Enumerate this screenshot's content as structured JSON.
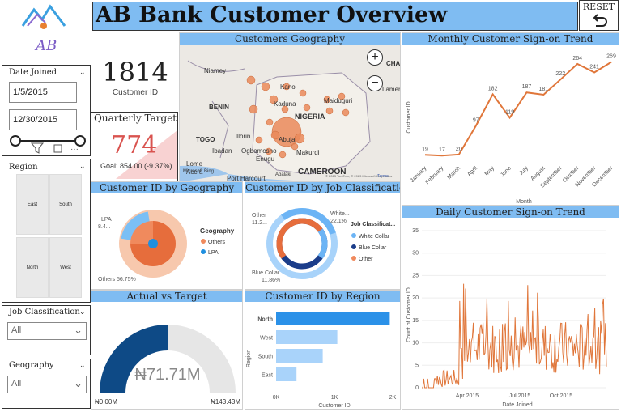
{
  "header": {
    "title": "AB Bank Customer Overview",
    "reset_label": "RESET",
    "logo_text": "AB"
  },
  "kpi": {
    "value": "1814",
    "label": "Customer ID"
  },
  "target": {
    "title": "Quarterly Target",
    "value": "774",
    "goal": "Goal: 854.00 (-9.37%)",
    "progress": 0.906
  },
  "date_slicer": {
    "title": "Date Joined",
    "start": "1/5/2015",
    "end": "12/30/2015"
  },
  "region_slicer": {
    "title": "Region",
    "tiles": [
      "East",
      "South",
      "North",
      "West"
    ]
  },
  "job_slicer": {
    "title": "Job Classification",
    "value": "All"
  },
  "geo_slicer": {
    "title": "Geography",
    "value": "All"
  },
  "map": {
    "title": "Customers Geography",
    "labels": [
      "Niamey",
      "BENIN",
      "TOGO",
      "Kano",
      "Kaduna",
      "NIGERIA",
      "Maiduguri",
      "Abuja",
      "Ilorin",
      "Ibadan",
      "Ogbomosho",
      "Enugu",
      "Makurdi",
      "Lome",
      "Accra",
      "Port Harcourt",
      "Abalaki",
      "CAMEROON",
      "CHA",
      "Lamene"
    ],
    "zoom_in": "+",
    "zoom_out": "−",
    "credit": "Microsoft Bing",
    "terms": "Terms",
    "copyright": "© 2023 TomTom, © 2023 Microsoft Corporation"
  },
  "monthly": {
    "title": "Monthly Customer Sign-on Trend",
    "ylabel": "Customer ID",
    "xlabel": "Month"
  },
  "daily": {
    "title": "Daily Customer Sign-on Trend",
    "ylabel": "Count of Customer ID",
    "xlabel": "Date Joined"
  },
  "geo_donut": {
    "title": "Customer ID by Geography",
    "legend_title": "Geography",
    "lbl_top": "LPA",
    "lbl_top2": "8.4...",
    "lbl_bottom": "Others 56.75%"
  },
  "job_donut": {
    "title": "Customer ID by Job Classification",
    "legend_title": "Job Classificat...",
    "lbl_top_left": "Other",
    "lbl_top_left2": "11.2...",
    "lbl_top_right": "White...",
    "lbl_top_right2": "22.1%",
    "lbl_bottom": "Blue Collar",
    "lbl_bottom2": "11.86%"
  },
  "gauge": {
    "title": "Actual vs Target",
    "value": "₦71.71M",
    "min": "₦0.00M",
    "max": "₦143.43M"
  },
  "region_bar": {
    "title": "Customer ID by Region",
    "ylabel": "Region",
    "xlabel": "Customer ID"
  },
  "chart_data": [
    {
      "type": "line",
      "title": "Monthly Customer Sign-on Trend",
      "xlabel": "Month",
      "ylabel": "Customer ID",
      "x": [
        "January",
        "February",
        "March",
        "April",
        "May",
        "June",
        "July",
        "August",
        "September",
        "October",
        "November",
        "December"
      ],
      "values": [
        19,
        17,
        20,
        97,
        182,
        119,
        187,
        181,
        222,
        264,
        241,
        269
      ],
      "ylim": [
        0,
        290
      ]
    },
    {
      "type": "pie",
      "title": "Customer ID by Geography",
      "series": [
        {
          "name": "Others",
          "value": 56.75
        },
        {
          "name": "LPA",
          "value": 8.4
        }
      ],
      "colors": [
        "#f08a5d",
        "#1f8fe0"
      ]
    },
    {
      "type": "pie",
      "title": "Customer ID by Job Classification",
      "series": [
        {
          "name": "White Collar",
          "value": 22.1
        },
        {
          "name": "Blue Collar",
          "value": 11.86
        },
        {
          "name": "Other",
          "value": 11.2
        }
      ],
      "colors": [
        "#6cb4f5",
        "#1b3d8a",
        "#f08a5d"
      ]
    },
    {
      "type": "bar",
      "title": "Customer ID by Region",
      "categories": [
        "North",
        "West",
        "South",
        "East"
      ],
      "values": [
        1950,
        1050,
        800,
        350
      ],
      "xlim": [
        0,
        2000
      ],
      "xticks": [
        "0K",
        "1K",
        "2K"
      ]
    },
    {
      "type": "line",
      "title": "Daily Customer Sign-on Trend",
      "xlabel": "Date Joined",
      "ylabel": "Count of Customer ID",
      "yticks": [
        "0",
        "5",
        "10",
        "15",
        "20",
        "25",
        "30",
        "35"
      ],
      "xticks": [
        "Apr 2015",
        "Jul 2015",
        "Oct 2015"
      ],
      "ylim": [
        0,
        35
      ]
    }
  ]
}
